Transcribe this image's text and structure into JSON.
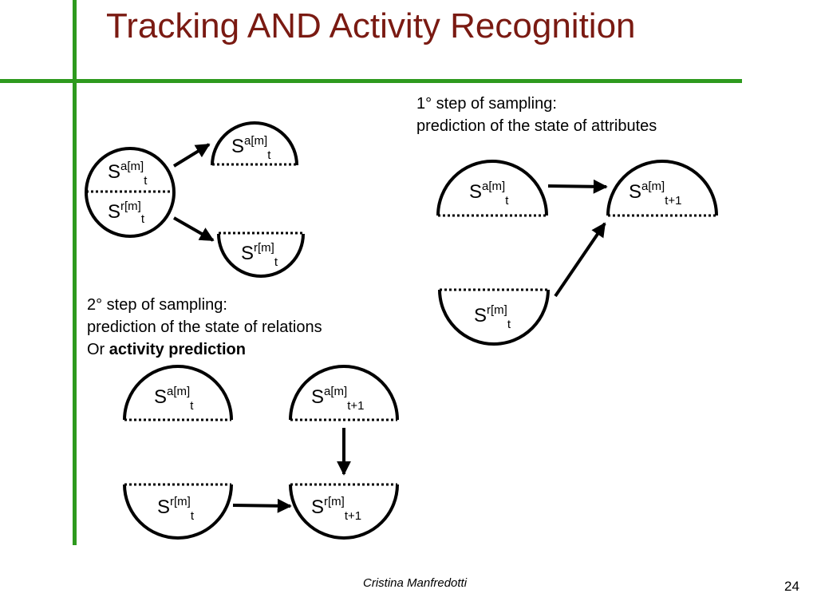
{
  "title": "Tracking AND Activity Recognition",
  "step1": {
    "line1": "1° step of sampling:",
    "line2": "prediction of the state of attributes"
  },
  "step2": {
    "line1": "2° step of sampling:",
    "line2": "prediction of the state of relations",
    "line3_prefix": "Or ",
    "line3_bold": "activity prediction"
  },
  "nodes": {
    "S": "S",
    "attr_sup": "a[m]",
    "rel_sup": "r[m]",
    "sub_t": "t",
    "sub_t1": "t+1"
  },
  "footer": {
    "author": "Cristina Manfredotti",
    "page": "24"
  }
}
